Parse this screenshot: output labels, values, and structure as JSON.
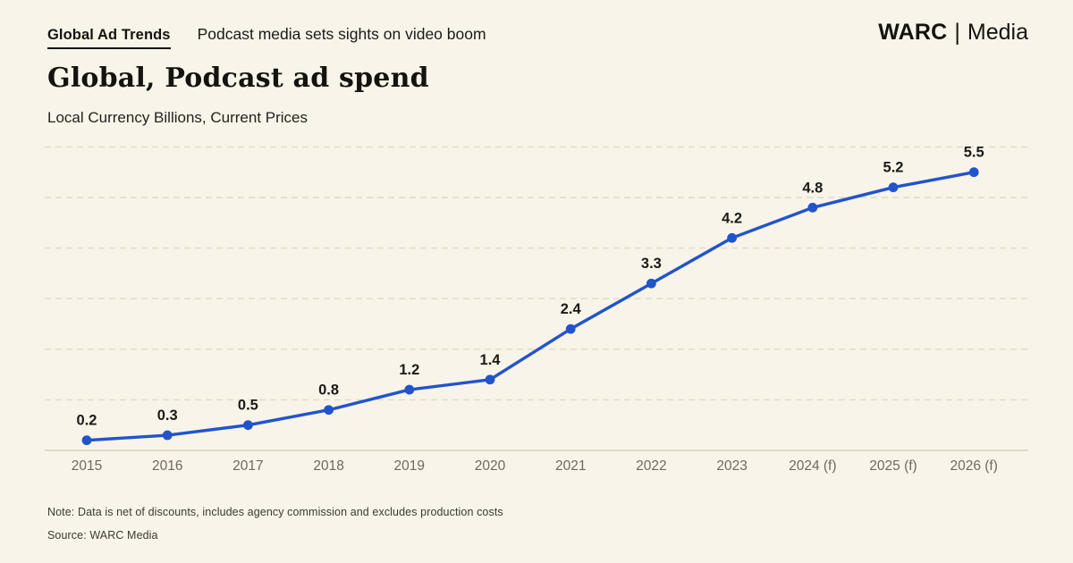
{
  "header": {
    "kicker": "Global Ad Trends",
    "headline": "Podcast media sets sights on video boom",
    "brand": {
      "primary": "WARC",
      "separator": "|",
      "secondary": "Media"
    }
  },
  "title": "Global, Podcast ad spend",
  "subtitle": "Local Currency Billions, Current Prices",
  "chart_data": {
    "type": "line",
    "title": "Global, Podcast ad spend",
    "subtitle": "Local Currency Billions, Current Prices",
    "categories": [
      "2015",
      "2016",
      "2017",
      "2018",
      "2019",
      "2020",
      "2021",
      "2022",
      "2023",
      "2024 (f)",
      "2025 (f)",
      "2026 (f)"
    ],
    "series": [
      {
        "name": "Podcast ad spend (local currency billions)",
        "values": [
          0.2,
          0.3,
          0.5,
          0.8,
          1.2,
          1.4,
          2.4,
          3.3,
          4.2,
          4.8,
          5.2,
          5.5
        ]
      }
    ],
    "data_labels": [
      "0.2",
      "0.3",
      "0.5",
      "0.8",
      "1.2",
      "1.4",
      "2.4",
      "3.3",
      "4.2",
      "4.8",
      "5.2",
      "5.5"
    ],
    "ylim": [
      0,
      6.2
    ],
    "gridline_values": [
      1,
      2,
      3,
      4,
      5,
      6
    ],
    "grid_style": "dashed horizontal, unlabeled",
    "legend": "none",
    "colors": {
      "line": "#2154CB",
      "marker": "#2154CB",
      "value_label": "#1b1a17",
      "tick_label": "#6E6A60",
      "gridline": "#DFD9CA",
      "axis_baseline": "#D8D2C3"
    }
  },
  "footer": {
    "note": "Note: Data is net of discounts, includes agency commission and excludes production costs",
    "source": "Source: WARC Media"
  },
  "colors": {
    "background": "#F8F4E9",
    "accent_blue": "#2154CB",
    "text": "#14130f"
  }
}
